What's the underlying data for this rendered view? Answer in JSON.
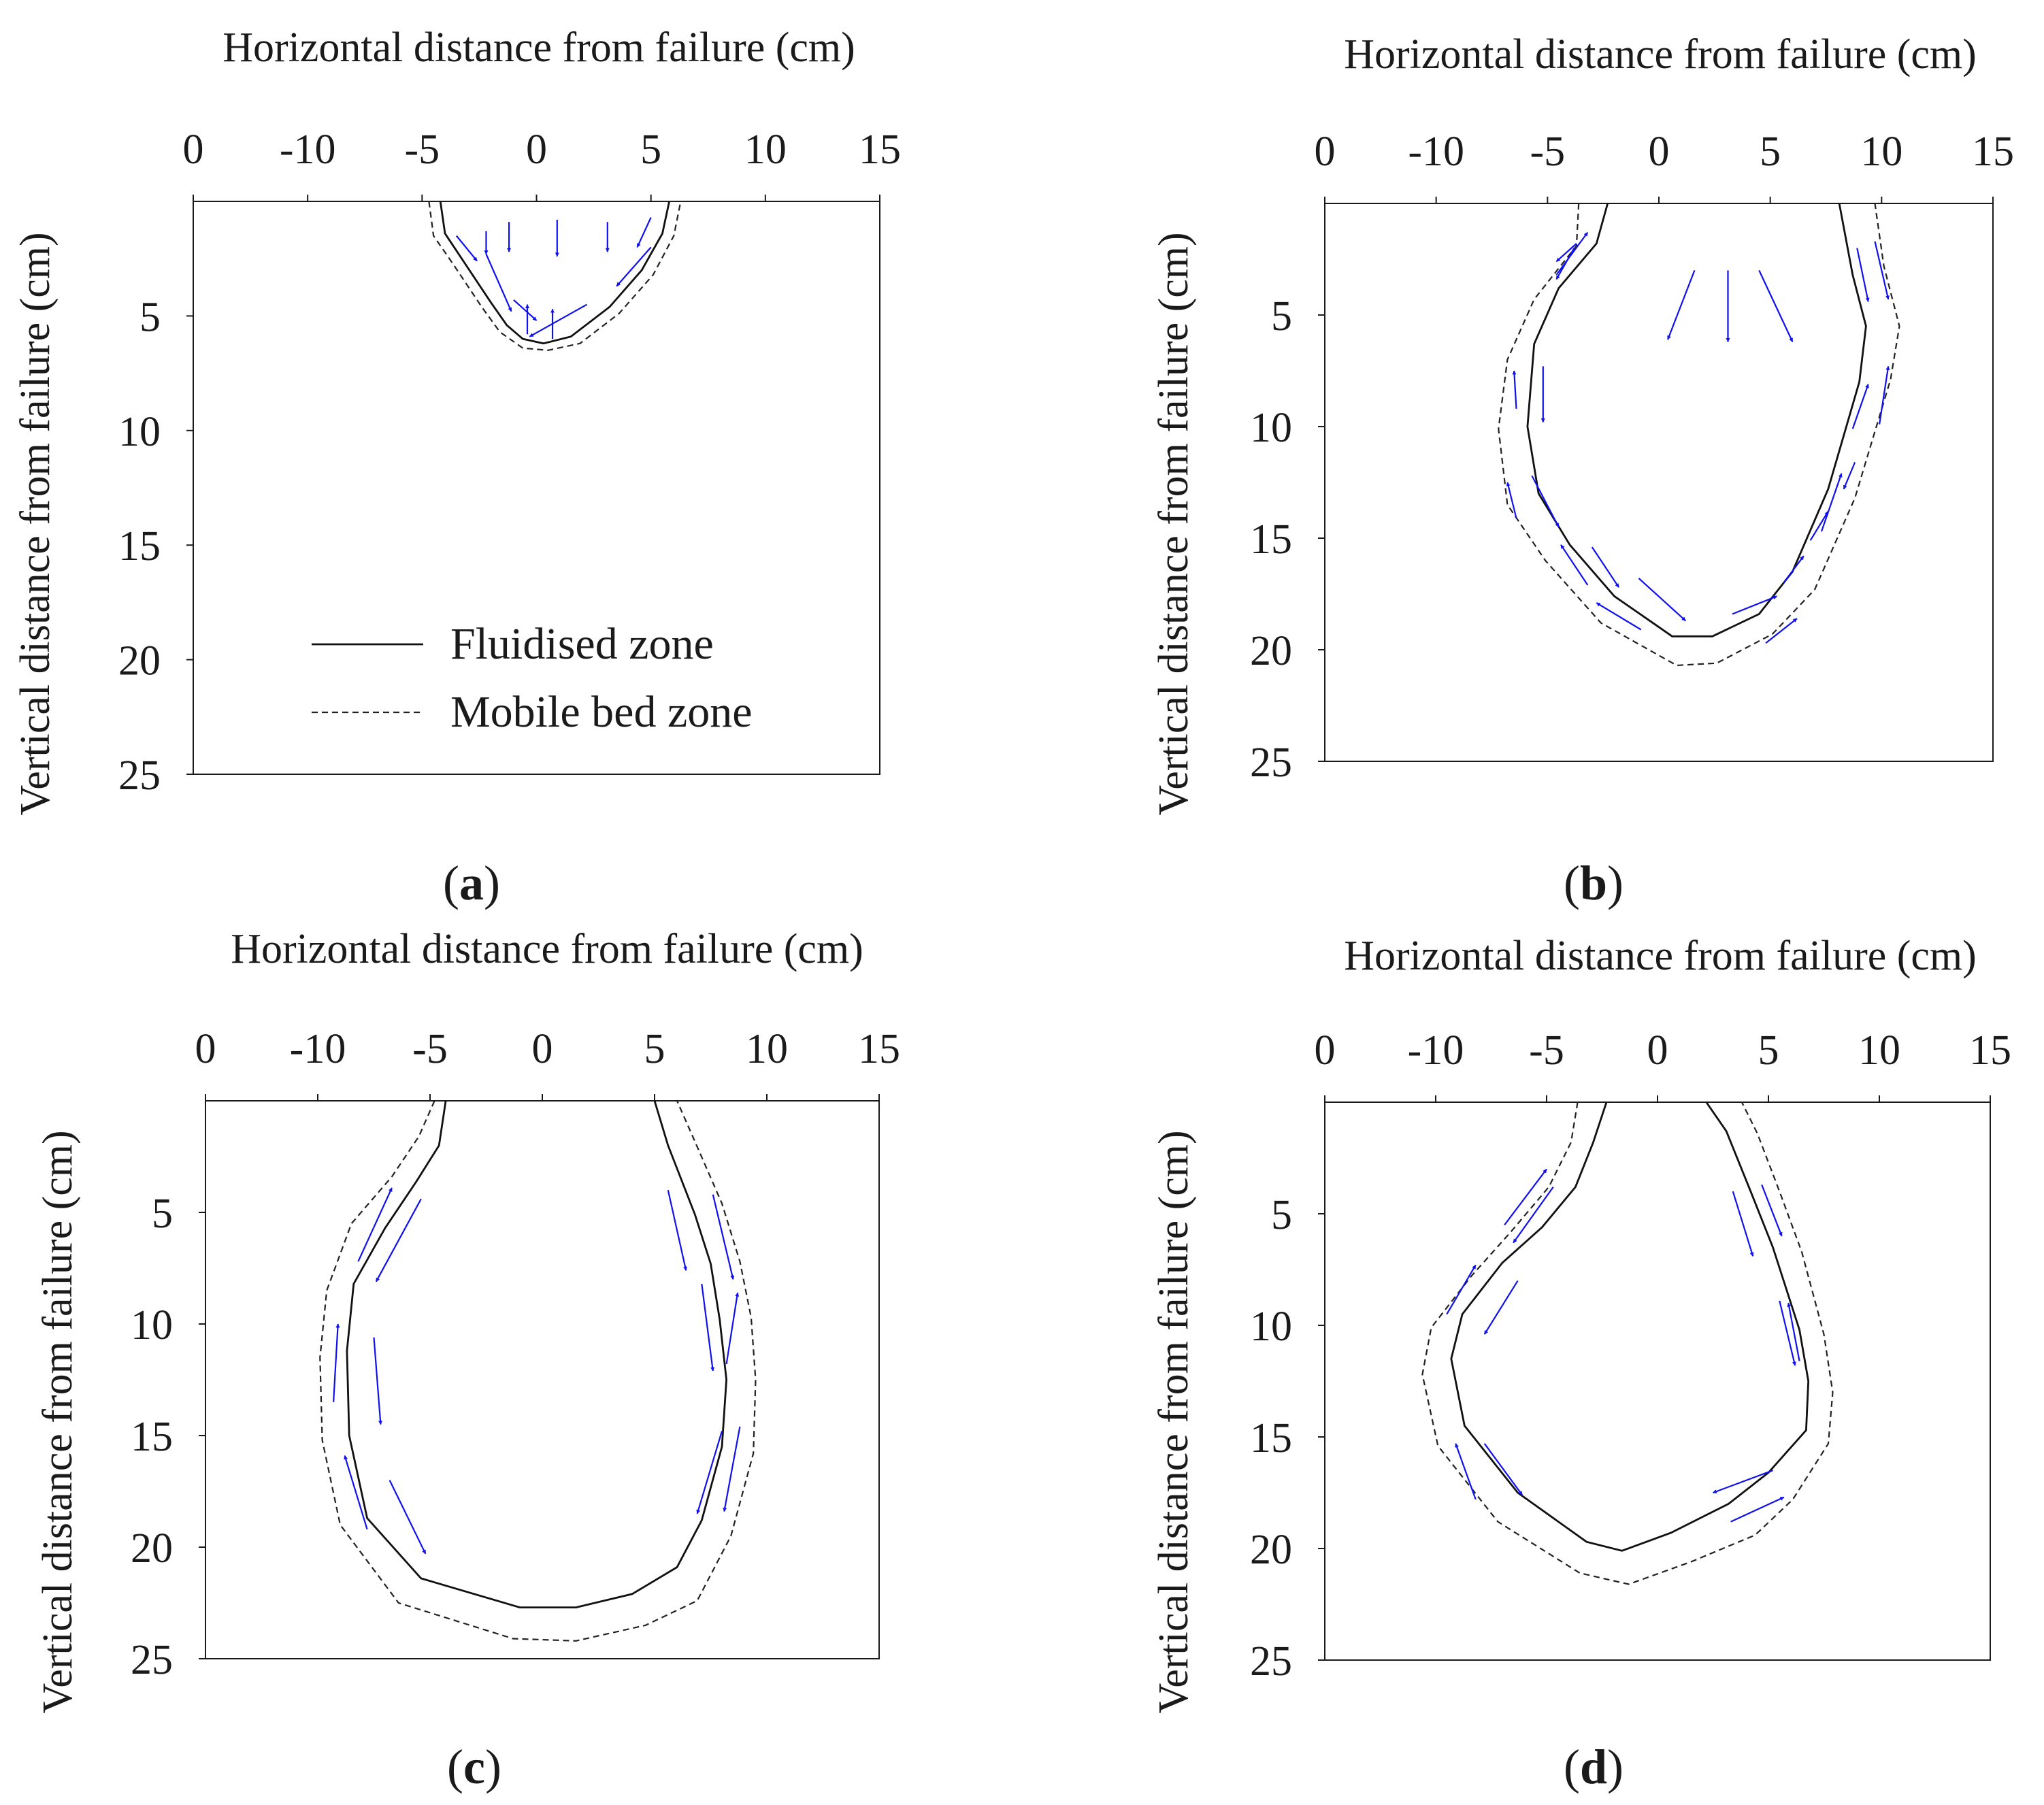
{
  "figure": {
    "legend": [
      {
        "label": "Fluidised zone",
        "style": "solid"
      },
      {
        "label": "Mobile bed zone",
        "style": "dashed"
      }
    ],
    "colors": {
      "axis": "#1a1a1a",
      "arrow": "#1010ee",
      "fluidised": "#111111",
      "mobile": "#222222"
    }
  },
  "chart_data": [
    {
      "type": "line",
      "caption": "(a)",
      "caption_letter": "a",
      "xlabel": "Horizontal distance from failure (cm)",
      "ylabel": "Vertical distance from failure (cm)",
      "x_ticks": [
        "0",
        "-10",
        "-5",
        "0",
        "5",
        "10",
        "15"
      ],
      "y_ticks": [
        "5",
        "10",
        "15",
        "20",
        "25"
      ],
      "x_range": [
        -15,
        15
      ],
      "y_range": [
        0,
        25
      ],
      "legend_shown": true,
      "series": [
        {
          "name": "Fluidised zone",
          "style": "solid",
          "points": [
            [
              -4.2,
              0
            ],
            [
              -4.0,
              1.4
            ],
            [
              -3.2,
              2.6
            ],
            [
              -2.0,
              4.4
            ],
            [
              -1.3,
              5.4
            ],
            [
              -0.6,
              6.0
            ],
            [
              0.3,
              6.2
            ],
            [
              1.5,
              5.9
            ],
            [
              3.2,
              4.6
            ],
            [
              4.6,
              3.0
            ],
            [
              5.5,
              1.4
            ],
            [
              5.8,
              0
            ]
          ]
        },
        {
          "name": "Mobile bed zone",
          "style": "dashed",
          "points": [
            [
              -4.7,
              0
            ],
            [
              -4.5,
              1.5
            ],
            [
              -3.6,
              2.8
            ],
            [
              -2.4,
              4.6
            ],
            [
              -1.6,
              5.7
            ],
            [
              -0.6,
              6.4
            ],
            [
              0.5,
              6.5
            ],
            [
              1.9,
              6.2
            ],
            [
              3.6,
              4.9
            ],
            [
              5.1,
              3.2
            ],
            [
              6.0,
              1.5
            ],
            [
              6.3,
              0
            ]
          ]
        }
      ],
      "flow_arrows": [
        [
          -3.5,
          1.5,
          -2.6,
          2.6
        ],
        [
          -2.2,
          1.3,
          -2.2,
          2.3
        ],
        [
          -1.2,
          0.9,
          -1.2,
          2.2
        ],
        [
          0.9,
          0.8,
          0.9,
          2.4
        ],
        [
          3.1,
          0.9,
          3.1,
          2.2
        ],
        [
          5.0,
          0.7,
          4.4,
          2.0
        ],
        [
          -2.2,
          2.3,
          -1.1,
          4.8
        ],
        [
          5.0,
          2.0,
          3.5,
          3.7
        ],
        [
          2.2,
          4.5,
          -0.3,
          5.9
        ],
        [
          -0.4,
          5.8,
          -0.4,
          4.5
        ],
        [
          0.7,
          6.0,
          0.7,
          4.7
        ],
        [
          -1.0,
          4.3,
          0.0,
          5.2
        ]
      ]
    },
    {
      "type": "line",
      "caption": "(b)",
      "caption_letter": "b",
      "xlabel": "Horizontal distance from failure (cm)",
      "ylabel": "Vertical distance from failure (cm)",
      "x_ticks": [
        "0",
        "-10",
        "-5",
        "0",
        "5",
        "10",
        "15"
      ],
      "y_ticks": [
        "5",
        "10",
        "15",
        "20",
        "25"
      ],
      "x_range": [
        -15,
        15
      ],
      "y_range": [
        0,
        25
      ],
      "legend_shown": false,
      "series": [
        {
          "name": "Fluidised zone",
          "style": "solid",
          "points": [
            [
              -2.3,
              0
            ],
            [
              -2.8,
              1.8
            ],
            [
              -4.5,
              3.8
            ],
            [
              -5.6,
              6.3
            ],
            [
              -5.9,
              10.0
            ],
            [
              -5.4,
              13.0
            ],
            [
              -4.0,
              15.3
            ],
            [
              -2.0,
              17.6
            ],
            [
              0.6,
              19.4
            ],
            [
              2.4,
              19.4
            ],
            [
              4.5,
              18.4
            ],
            [
              6.0,
              16.5
            ],
            [
              7.6,
              12.8
            ],
            [
              9.0,
              8.0
            ],
            [
              9.3,
              5.5
            ],
            [
              8.7,
              3.2
            ],
            [
              8.1,
              0
            ]
          ]
        },
        {
          "name": "Mobile bed zone",
          "style": "dashed",
          "points": [
            [
              -3.6,
              0
            ],
            [
              -3.7,
              1.9
            ],
            [
              -5.6,
              4.3
            ],
            [
              -6.8,
              7.0
            ],
            [
              -7.2,
              10.1
            ],
            [
              -6.8,
              13.5
            ],
            [
              -5.1,
              16.0
            ],
            [
              -2.6,
              18.8
            ],
            [
              0.8,
              20.7
            ],
            [
              2.6,
              20.6
            ],
            [
              5.1,
              19.3
            ],
            [
              7.0,
              17.3
            ],
            [
              8.8,
              13.2
            ],
            [
              10.4,
              7.9
            ],
            [
              10.8,
              5.5
            ],
            [
              10.1,
              2.8
            ],
            [
              9.7,
              0
            ]
          ]
        }
      ],
      "flow_arrows": [
        [
          -4.6,
          3.2,
          -3.2,
          1.3
        ],
        [
          -3.8,
          2.0,
          -4.6,
          3.4
        ],
        [
          -3.7,
          1.8,
          -4.6,
          2.6
        ],
        [
          -6.4,
          9.2,
          -6.5,
          7.5
        ],
        [
          -5.2,
          7.3,
          -5.2,
          9.8
        ],
        [
          -6.4,
          14.1,
          -6.8,
          12.5
        ],
        [
          -5.7,
          12.2,
          -4.5,
          14.5
        ],
        [
          -3.2,
          17.1,
          -4.4,
          15.3
        ],
        [
          -3.0,
          15.4,
          -1.8,
          17.2
        ],
        [
          -0.8,
          19.1,
          -2.8,
          17.9
        ],
        [
          -0.9,
          16.8,
          1.2,
          18.7
        ],
        [
          3.3,
          18.4,
          5.3,
          17.6
        ],
        [
          4.8,
          19.7,
          6.2,
          18.6
        ],
        [
          5.6,
          17.0,
          6.5,
          15.8
        ],
        [
          6.8,
          15.1,
          7.6,
          13.8
        ],
        [
          7.3,
          14.7,
          8.2,
          12.1
        ],
        [
          8.8,
          11.6,
          8.3,
          12.8
        ],
        [
          8.7,
          10.1,
          9.4,
          8.1
        ],
        [
          9.9,
          9.9,
          10.3,
          7.3
        ],
        [
          8.9,
          2.0,
          9.4,
          4.4
        ],
        [
          9.7,
          1.7,
          10.3,
          4.3
        ],
        [
          1.6,
          3.0,
          0.4,
          6.1
        ],
        [
          3.1,
          3.0,
          3.1,
          6.2
        ],
        [
          4.5,
          3.0,
          6.0,
          6.2
        ]
      ]
    },
    {
      "type": "line",
      "caption": "(c)",
      "caption_letter": "c",
      "xlabel": "Horizontal distance from failure (cm)",
      "ylabel": "Vertical distance from failure (cm)",
      "x_ticks": [
        "0",
        "-10",
        "-5",
        "0",
        "5",
        "10",
        "15"
      ],
      "y_ticks": [
        "5",
        "10",
        "15",
        "20",
        "25"
      ],
      "x_range": [
        -15,
        15
      ],
      "y_range": [
        0,
        25
      ],
      "legend_shown": false,
      "series": [
        {
          "name": "Fluidised zone",
          "style": "solid",
          "points": [
            [
              -4.3,
              0
            ],
            [
              -4.6,
              2.0
            ],
            [
              -5.6,
              3.6
            ],
            [
              -7.0,
              5.7
            ],
            [
              -8.4,
              8.2
            ],
            [
              -8.7,
              11.2
            ],
            [
              -8.6,
              15.0
            ],
            [
              -7.8,
              18.7
            ],
            [
              -5.4,
              21.4
            ],
            [
              -1.0,
              22.7
            ],
            [
              1.5,
              22.7
            ],
            [
              4.0,
              22.1
            ],
            [
              6.0,
              20.9
            ],
            [
              7.1,
              18.8
            ],
            [
              8.0,
              15.5
            ],
            [
              8.2,
              12.5
            ],
            [
              7.9,
              9.8
            ],
            [
              7.5,
              7.3
            ],
            [
              6.8,
              5.1
            ],
            [
              5.6,
              2.0
            ],
            [
              5.0,
              0
            ]
          ]
        },
        {
          "name": "Mobile bed zone",
          "style": "dashed",
          "points": [
            [
              -4.8,
              0
            ],
            [
              -5.5,
              1.6
            ],
            [
              -6.7,
              3.4
            ],
            [
              -8.5,
              5.5
            ],
            [
              -9.6,
              8.5
            ],
            [
              -9.9,
              11.5
            ],
            [
              -9.8,
              15.2
            ],
            [
              -9.0,
              19.0
            ],
            [
              -6.4,
              22.5
            ],
            [
              -1.3,
              24.1
            ],
            [
              1.5,
              24.2
            ],
            [
              4.6,
              23.5
            ],
            [
              6.9,
              22.4
            ],
            [
              8.4,
              19.5
            ],
            [
              9.4,
              15.8
            ],
            [
              9.5,
              12.5
            ],
            [
              9.3,
              9.7
            ],
            [
              8.8,
              7.2
            ],
            [
              8.0,
              4.6
            ],
            [
              6.7,
              1.6
            ],
            [
              6.0,
              0
            ]
          ]
        }
      ],
      "flow_arrows": [
        [
          -8.2,
          7.2,
          -6.7,
          3.9
        ],
        [
          -5.4,
          4.4,
          -7.4,
          8.1
        ],
        [
          -9.3,
          13.5,
          -9.1,
          10.0
        ],
        [
          -7.5,
          10.6,
          -7.2,
          14.5
        ],
        [
          -7.8,
          19.2,
          -8.8,
          15.9
        ],
        [
          -6.8,
          17.0,
          -5.2,
          20.3
        ],
        [
          5.6,
          4.0,
          6.4,
          7.6
        ],
        [
          7.6,
          4.2,
          8.5,
          8.0
        ],
        [
          7.1,
          8.2,
          7.6,
          12.1
        ],
        [
          8.2,
          11.8,
          8.7,
          8.6
        ],
        [
          8.0,
          14.8,
          6.9,
          18.5
        ],
        [
          8.8,
          14.6,
          8.1,
          18.4
        ]
      ]
    },
    {
      "type": "line",
      "caption": "(d)",
      "caption_letter": "d",
      "xlabel": "Horizontal distance from failure (cm)",
      "ylabel": "Vertical distance from failure (cm)",
      "x_ticks": [
        "0",
        "-10",
        "-5",
        "0",
        "5",
        "10",
        "15"
      ],
      "y_ticks": [
        "5",
        "10",
        "15",
        "20",
        "25"
      ],
      "x_range": [
        -15,
        15
      ],
      "y_range": [
        0,
        25
      ],
      "legend_shown": false,
      "series": [
        {
          "name": "Fluidised zone",
          "style": "solid",
          "points": [
            [
              -2.3,
              0
            ],
            [
              -2.9,
              1.8
            ],
            [
              -3.7,
              3.8
            ],
            [
              -5.2,
              5.6
            ],
            [
              -7.0,
              7.2
            ],
            [
              -8.8,
              9.5
            ],
            [
              -9.3,
              11.5
            ],
            [
              -8.7,
              14.5
            ],
            [
              -6.3,
              17.5
            ],
            [
              -3.2,
              19.7
            ],
            [
              -1.6,
              20.1
            ],
            [
              0.6,
              19.3
            ],
            [
              3.2,
              18.0
            ],
            [
              5.0,
              16.6
            ],
            [
              6.7,
              14.7
            ],
            [
              6.8,
              12.5
            ],
            [
              6.4,
              10.2
            ],
            [
              5.2,
              6.5
            ],
            [
              4.2,
              4.0
            ],
            [
              3.1,
              1.3
            ],
            [
              2.2,
              0
            ]
          ]
        },
        {
          "name": "Mobile bed zone",
          "style": "dashed",
          "points": [
            [
              -3.6,
              0
            ],
            [
              -3.9,
              1.8
            ],
            [
              -4.9,
              3.8
            ],
            [
              -6.6,
              5.8
            ],
            [
              -8.4,
              7.8
            ],
            [
              -10.2,
              10.1
            ],
            [
              -10.6,
              12.2
            ],
            [
              -9.9,
              15.4
            ],
            [
              -7.2,
              18.8
            ],
            [
              -3.5,
              21.1
            ],
            [
              -1.3,
              21.6
            ],
            [
              1.5,
              20.6
            ],
            [
              4.4,
              19.4
            ],
            [
              6.1,
              17.8
            ],
            [
              7.7,
              15.3
            ],
            [
              7.9,
              13.0
            ],
            [
              7.5,
              10.4
            ],
            [
              6.5,
              6.7
            ],
            [
              5.5,
              4.0
            ],
            [
              4.5,
              1.4
            ],
            [
              3.8,
              0
            ]
          ]
        }
      ],
      "flow_arrows": [
        [
          -6.9,
          5.5,
          -5.0,
          3.0
        ],
        [
          -4.7,
          3.8,
          -6.5,
          6.3
        ],
        [
          -9.5,
          9.5,
          -8.2,
          7.3
        ],
        [
          -6.3,
          8.0,
          -7.8,
          10.4
        ],
        [
          -8.2,
          17.8,
          -9.1,
          15.3
        ],
        [
          -7.8,
          15.3,
          -6.1,
          17.6
        ],
        [
          3.4,
          4.0,
          4.3,
          6.9
        ],
        [
          4.7,
          3.7,
          5.6,
          6.0
        ],
        [
          5.5,
          8.9,
          6.2,
          11.8
        ],
        [
          6.4,
          11.6,
          5.9,
          9.0
        ],
        [
          5.2,
          16.5,
          2.5,
          17.5
        ],
        [
          3.3,
          18.8,
          5.7,
          17.7
        ]
      ]
    }
  ]
}
